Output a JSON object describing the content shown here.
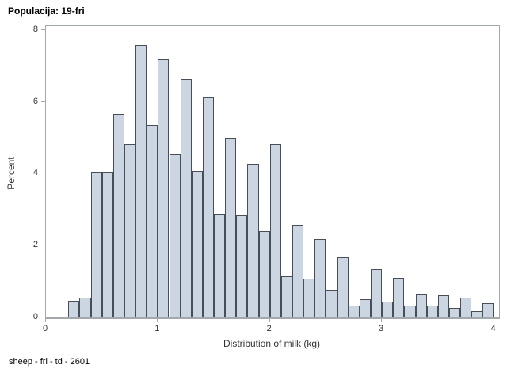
{
  "title": "Populacija: 19-fri",
  "footnote": "sheep - fri - td - 2601",
  "colors": {
    "bar_fill": "#ccd6e3",
    "bar_stroke": "#474e57",
    "axis_line": "#a3a8ad",
    "tick_text": "#333333",
    "title_text": "#000000"
  },
  "chart_data": {
    "type": "bar",
    "subtype": "histogram",
    "title": "Populacija: 19-fri",
    "xlabel": "Distribution of milk (kg)",
    "ylabel": "Percent",
    "xlim": [
      0,
      4.046
    ],
    "ylim": [
      0,
      8.104
    ],
    "x_ticks": [
      0,
      1,
      2,
      3,
      4
    ],
    "y_ticks": [
      0,
      2,
      4,
      6,
      8
    ],
    "grid": false,
    "legend": "none",
    "bin_width": 0.1,
    "bin_left_edges": [
      0.2,
      0.3,
      0.4,
      0.5,
      0.6,
      0.7,
      0.8,
      0.9,
      1.0,
      1.1,
      1.2,
      1.3,
      1.4,
      1.5,
      1.6,
      1.7,
      1.8,
      1.9,
      2.0,
      2.1,
      2.2,
      2.3,
      2.4,
      2.5,
      2.6,
      2.7,
      2.8,
      2.9,
      3.0,
      3.1,
      3.2,
      3.3,
      3.4,
      3.5,
      3.6,
      3.7,
      3.8,
      3.9
    ],
    "values": [
      0.47,
      0.54,
      4.06,
      4.06,
      5.67,
      4.83,
      7.57,
      5.35,
      7.18,
      4.54,
      6.62,
      4.08,
      6.12,
      2.89,
      5.0,
      2.85,
      4.27,
      2.41,
      4.82,
      1.15,
      2.57,
      1.08,
      2.18,
      0.78,
      1.67,
      0.34,
      0.51,
      1.35,
      0.43,
      1.1,
      0.32,
      0.67,
      0.32,
      0.62,
      0.27,
      0.56,
      0.18,
      0.4
    ]
  }
}
